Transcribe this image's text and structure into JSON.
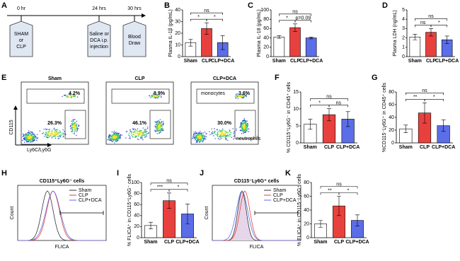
{
  "panel_letters": [
    "A",
    "B",
    "C",
    "D",
    "E",
    "F",
    "G",
    "H",
    "I",
    "J",
    "K"
  ],
  "timeline": {
    "times": [
      "0 hr",
      "24 hrs",
      "30 hrs"
    ],
    "boxes": [
      [
        "SHAM",
        "or",
        "CLP"
      ],
      [
        "Saline or",
        "DCA i.p.",
        "injection"
      ],
      [
        "Blood",
        "Draw"
      ]
    ]
  },
  "flow": {
    "titles": [
      "Sham",
      "CLP",
      "CLP+DCA"
    ],
    "x_label": "Ly6C/Ly6G",
    "y_label": "CD115",
    "upper_gate": [
      "4.2%",
      "8.9%",
      "3.6%"
    ],
    "lower_gate": [
      "26.3%",
      "46.1%",
      "30.0%"
    ],
    "upper_name": "monocytes",
    "lower_name": "neutrophils"
  },
  "histograms": [
    {
      "title": "CD115⁺Ly6G⁻ cells",
      "legend": [
        "Sham",
        "CLP",
        "CLP+DCA"
      ],
      "x_label": "FLICA",
      "y_label": "Count"
    },
    {
      "title": "CD115⁻Ly6G⁺ cells",
      "legend": [
        "Sham",
        "CLP",
        "CLP+DCA"
      ],
      "x_label": "FLICA",
      "y_label": "Count"
    }
  ],
  "chart_data": [
    {
      "type": "bar",
      "y_label": "Plasma IL-1β (pg/mL)",
      "categories": [
        "Sham",
        "CLP",
        "CLP+DCA"
      ],
      "values": [
        12,
        24,
        12
      ],
      "errors": [
        3,
        5,
        6
      ],
      "colors": [
        "#ffffff",
        "#e8413d",
        "#5b6ee8"
      ],
      "ylim": [
        0,
        40
      ],
      "yticks": [
        0,
        10,
        20,
        30,
        40
      ],
      "annotations": [
        "ns",
        "*",
        "*"
      ]
    },
    {
      "type": "bar",
      "y_label": "Plasma IL-18 (pg/mL)",
      "categories": [
        "Sham",
        "CLP",
        "CLP+DCA"
      ],
      "values": [
        42,
        62,
        40
      ],
      "errors": [
        3,
        8,
        2
      ],
      "colors": [
        "#ffffff",
        "#e8413d",
        "#5b6ee8"
      ],
      "ylim": [
        0,
        100
      ],
      "yticks": [
        0,
        20,
        40,
        60,
        80,
        100
      ],
      "annotations": [
        "ns",
        "*",
        "p=0.09"
      ]
    },
    {
      "type": "bar",
      "y_label": "Plasma LDH (ng/mL)",
      "categories": [
        "Sham",
        "CLP",
        "CLP+DCA"
      ],
      "values": [
        2.1,
        2.6,
        1.8
      ],
      "errors": [
        0.3,
        0.4,
        0.4
      ],
      "colors": [
        "#ffffff",
        "#e8413d",
        "#5b6ee8"
      ],
      "ylim": [
        0,
        5
      ],
      "yticks": [
        0,
        1,
        2,
        3,
        4,
        5
      ],
      "annotations": [
        "ns",
        "ns",
        "*"
      ]
    },
    {
      "type": "bar",
      "y_label": "% CD115⁺Ly6G⁻ in CD45⁺ cells",
      "categories": [
        "Sham",
        "CLP",
        "CLP+DCA"
      ],
      "values": [
        5.5,
        8.3,
        7
      ],
      "errors": [
        1.5,
        1.8,
        2.2
      ],
      "colors": [
        "#ffffff",
        "#e8413d",
        "#5b6ee8"
      ],
      "ylim": [
        0,
        15
      ],
      "yticks": [
        0,
        5,
        10,
        15
      ],
      "annotations": [
        "ns",
        "*",
        "ns"
      ]
    },
    {
      "type": "bar",
      "y_label": "%CD115⁻Ly6G⁺ in CD45⁺ cells",
      "categories": [
        "Sham",
        "CLP",
        "CLP+DCA"
      ],
      "values": [
        22,
        47,
        27
      ],
      "errors": [
        6,
        16,
        9
      ],
      "colors": [
        "#ffffff",
        "#e8413d",
        "#5b6ee8"
      ],
      "ylim": [
        0,
        80
      ],
      "yticks": [
        0,
        20,
        40,
        60,
        80
      ],
      "annotations": [
        "ns",
        "**",
        "*"
      ]
    },
    {
      "type": "bar",
      "y_label": "% FLICA⁺ in CD115⁺Ly6G⁻ cells",
      "categories": [
        "Sham",
        "CLP",
        "CLP+DCA"
      ],
      "values": [
        22,
        67,
        43
      ],
      "errors": [
        6,
        14,
        18
      ],
      "colors": [
        "#ffffff",
        "#e8413d",
        "#5b6ee8"
      ],
      "ylim": [
        0,
        100
      ],
      "yticks": [
        0,
        20,
        40,
        60,
        80,
        100
      ],
      "annotations": [
        "ns",
        "***",
        "*"
      ]
    },
    {
      "type": "bar",
      "y_label": "% FLICA⁺ in CD115⁻Ly6G⁺ cells",
      "categories": [
        "Sham",
        "CLP",
        "CLP+DCA"
      ],
      "values": [
        20,
        46,
        25
      ],
      "errors": [
        5,
        14,
        8
      ],
      "colors": [
        "#ffffff",
        "#e8413d",
        "#5b6ee8"
      ],
      "ylim": [
        0,
        80
      ],
      "yticks": [
        0,
        20,
        40,
        60,
        80
      ],
      "annotations": [
        "ns",
        "**",
        "*"
      ]
    }
  ]
}
